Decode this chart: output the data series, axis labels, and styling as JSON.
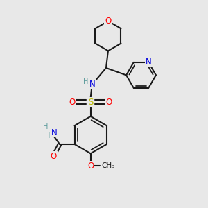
{
  "bg_color": "#e8e8e8",
  "bond_color": "#1a1a1a",
  "bond_width": 1.5,
  "atom_colors": {
    "O": "#ff0000",
    "N": "#0000dd",
    "S": "#bbbb00",
    "H": "#5a9a9a",
    "C": "#1a1a1a"
  },
  "font_size_atom": 8.5,
  "font_size_small": 7.0,
  "font_size_methyl": 7.5
}
